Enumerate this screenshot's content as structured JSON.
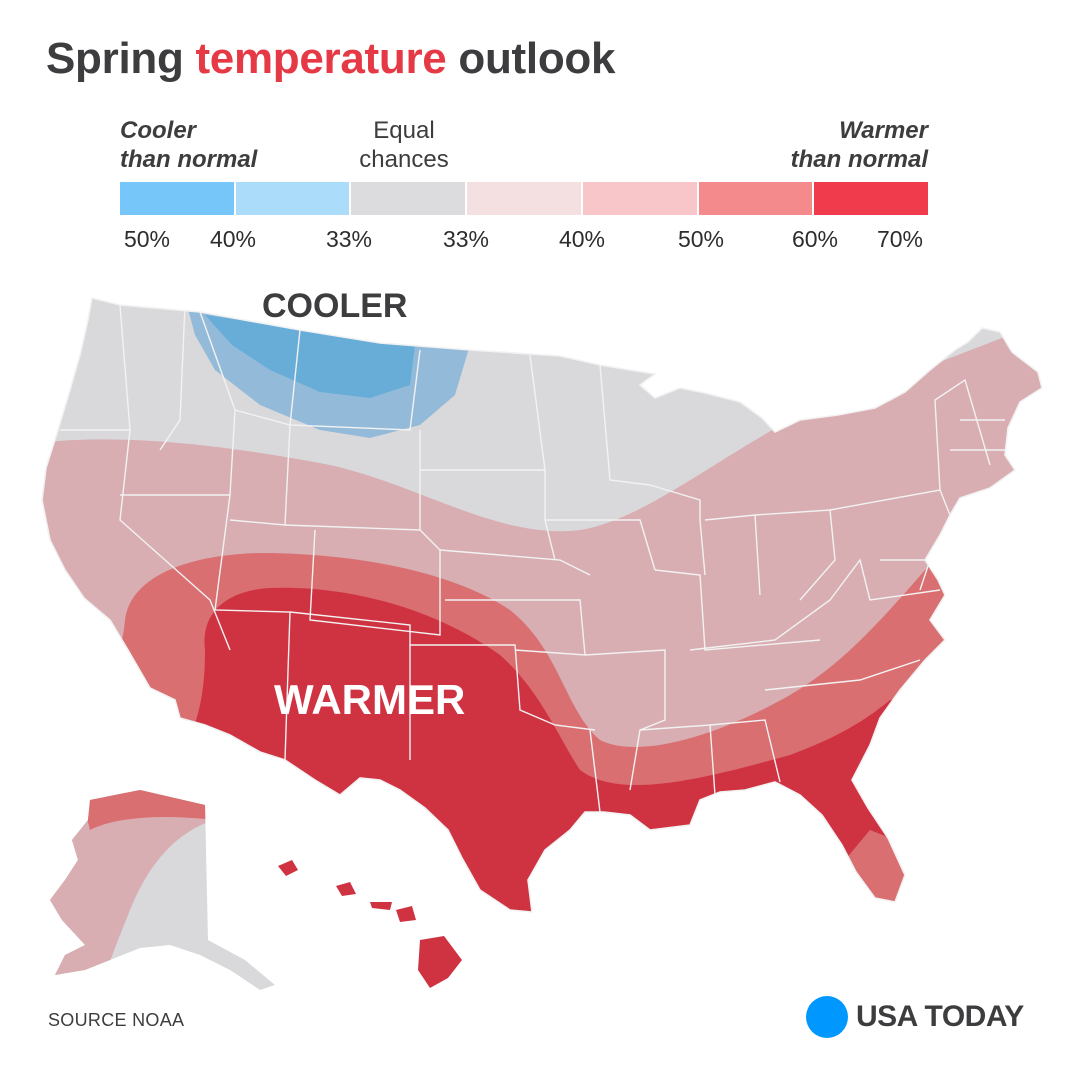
{
  "title": {
    "part1": "Spring ",
    "highlight": "temperature",
    "part2": " outlook"
  },
  "legend": {
    "cooler_line1": "Cooler",
    "cooler_line2": "than normal",
    "equal_line1": "Equal",
    "equal_line2": "chances",
    "warmer_line1": "Warmer",
    "warmer_line2": "than normal",
    "segments": [
      {
        "color": "#76c6fa",
        "meaning": "cooler 50%"
      },
      {
        "color": "#abddfb",
        "meaning": "cooler 40%"
      },
      {
        "color": "#dcdcde",
        "meaning": "equal chances"
      },
      {
        "color": "#f5e0e1",
        "meaning": "warmer 33%"
      },
      {
        "color": "#f8c6c8",
        "meaning": "warmer 40%"
      },
      {
        "color": "#f48a8c",
        "meaning": "warmer 50%"
      },
      {
        "color": "#ef3b4b",
        "meaning": "warmer 60%"
      }
    ],
    "ticks": [
      "50%",
      "40%",
      "33%",
      "33%",
      "40%",
      "50%",
      "60%",
      "70%"
    ]
  },
  "map": {
    "cooler_label": "COOLER",
    "warmer_label": "WARMER",
    "colors": {
      "land_equal": "#d9d9dc",
      "cooler_outer": "#93bbd9",
      "cooler_inner": "#68acd8",
      "warm_light": "#d8aeb2",
      "warm_medium": "#d96f71",
      "warm_strong": "#cf3342",
      "state_lines": "#f2f2f2"
    }
  },
  "footer": {
    "source": "SOURCE  NOAA",
    "brand": "USA TODAY",
    "brand_color": "#0098ff"
  }
}
